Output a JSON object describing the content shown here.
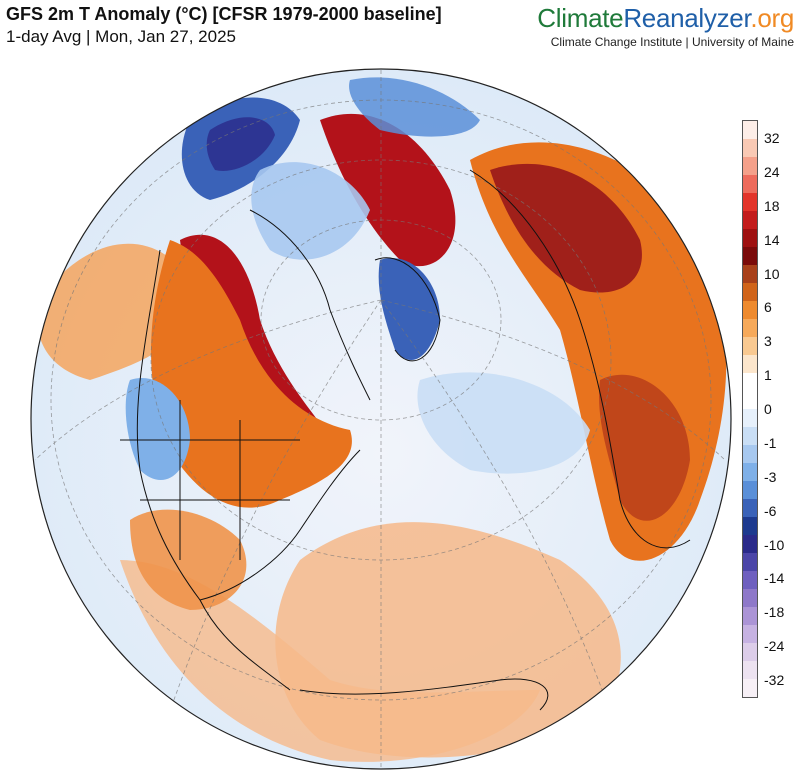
{
  "header": {
    "title": "GFS 2m T Anomaly (°C) [CFSR 1979-2000 baseline]",
    "subtitle": "1-day Avg | Mon, Jan 27, 2025"
  },
  "brand": {
    "logo_part1": "Climate",
    "logo_part2": "Reanalyzer",
    "logo_part3": ".org",
    "affiliation": "Climate Change Institute | University of Maine"
  },
  "legend": {
    "labels": [
      "32",
      "24",
      "18",
      "14",
      "10",
      "6",
      "3",
      "1",
      "0",
      "-1",
      "-3",
      "-6",
      "-10",
      "-14",
      "-18",
      "-24",
      "-32"
    ],
    "colors": [
      "#fdeee8",
      "#f9c9b4",
      "#f4a08a",
      "#ee6b5c",
      "#e3342a",
      "#c31c1c",
      "#9e1010",
      "#7a0a0a",
      "#a8401a",
      "#d0641a",
      "#ee8a2e",
      "#f6a95a",
      "#f9c991",
      "#fce6cc",
      "#ffffff",
      "#ffffff",
      "#e6f0fb",
      "#c9def5",
      "#a7c8ef",
      "#7fb0e8",
      "#5a8fd8",
      "#3a62b8",
      "#1d3a8f",
      "#2a2a8a",
      "#4b45a8",
      "#6e5fbf",
      "#8e78c9",
      "#ab94d6",
      "#c6b2e2",
      "#dccde9",
      "#ece2f0",
      "#f7f0f6"
    ]
  },
  "map_colors": {
    "ocean_warm": "#f6b98a",
    "ocean_cool": "#d6e8f8",
    "neutral": "#f4f6fa",
    "hot": "#b3121a",
    "warm": "#e86a1e",
    "cold": "#3a62b8",
    "very_cold": "#2a2a8a"
  }
}
